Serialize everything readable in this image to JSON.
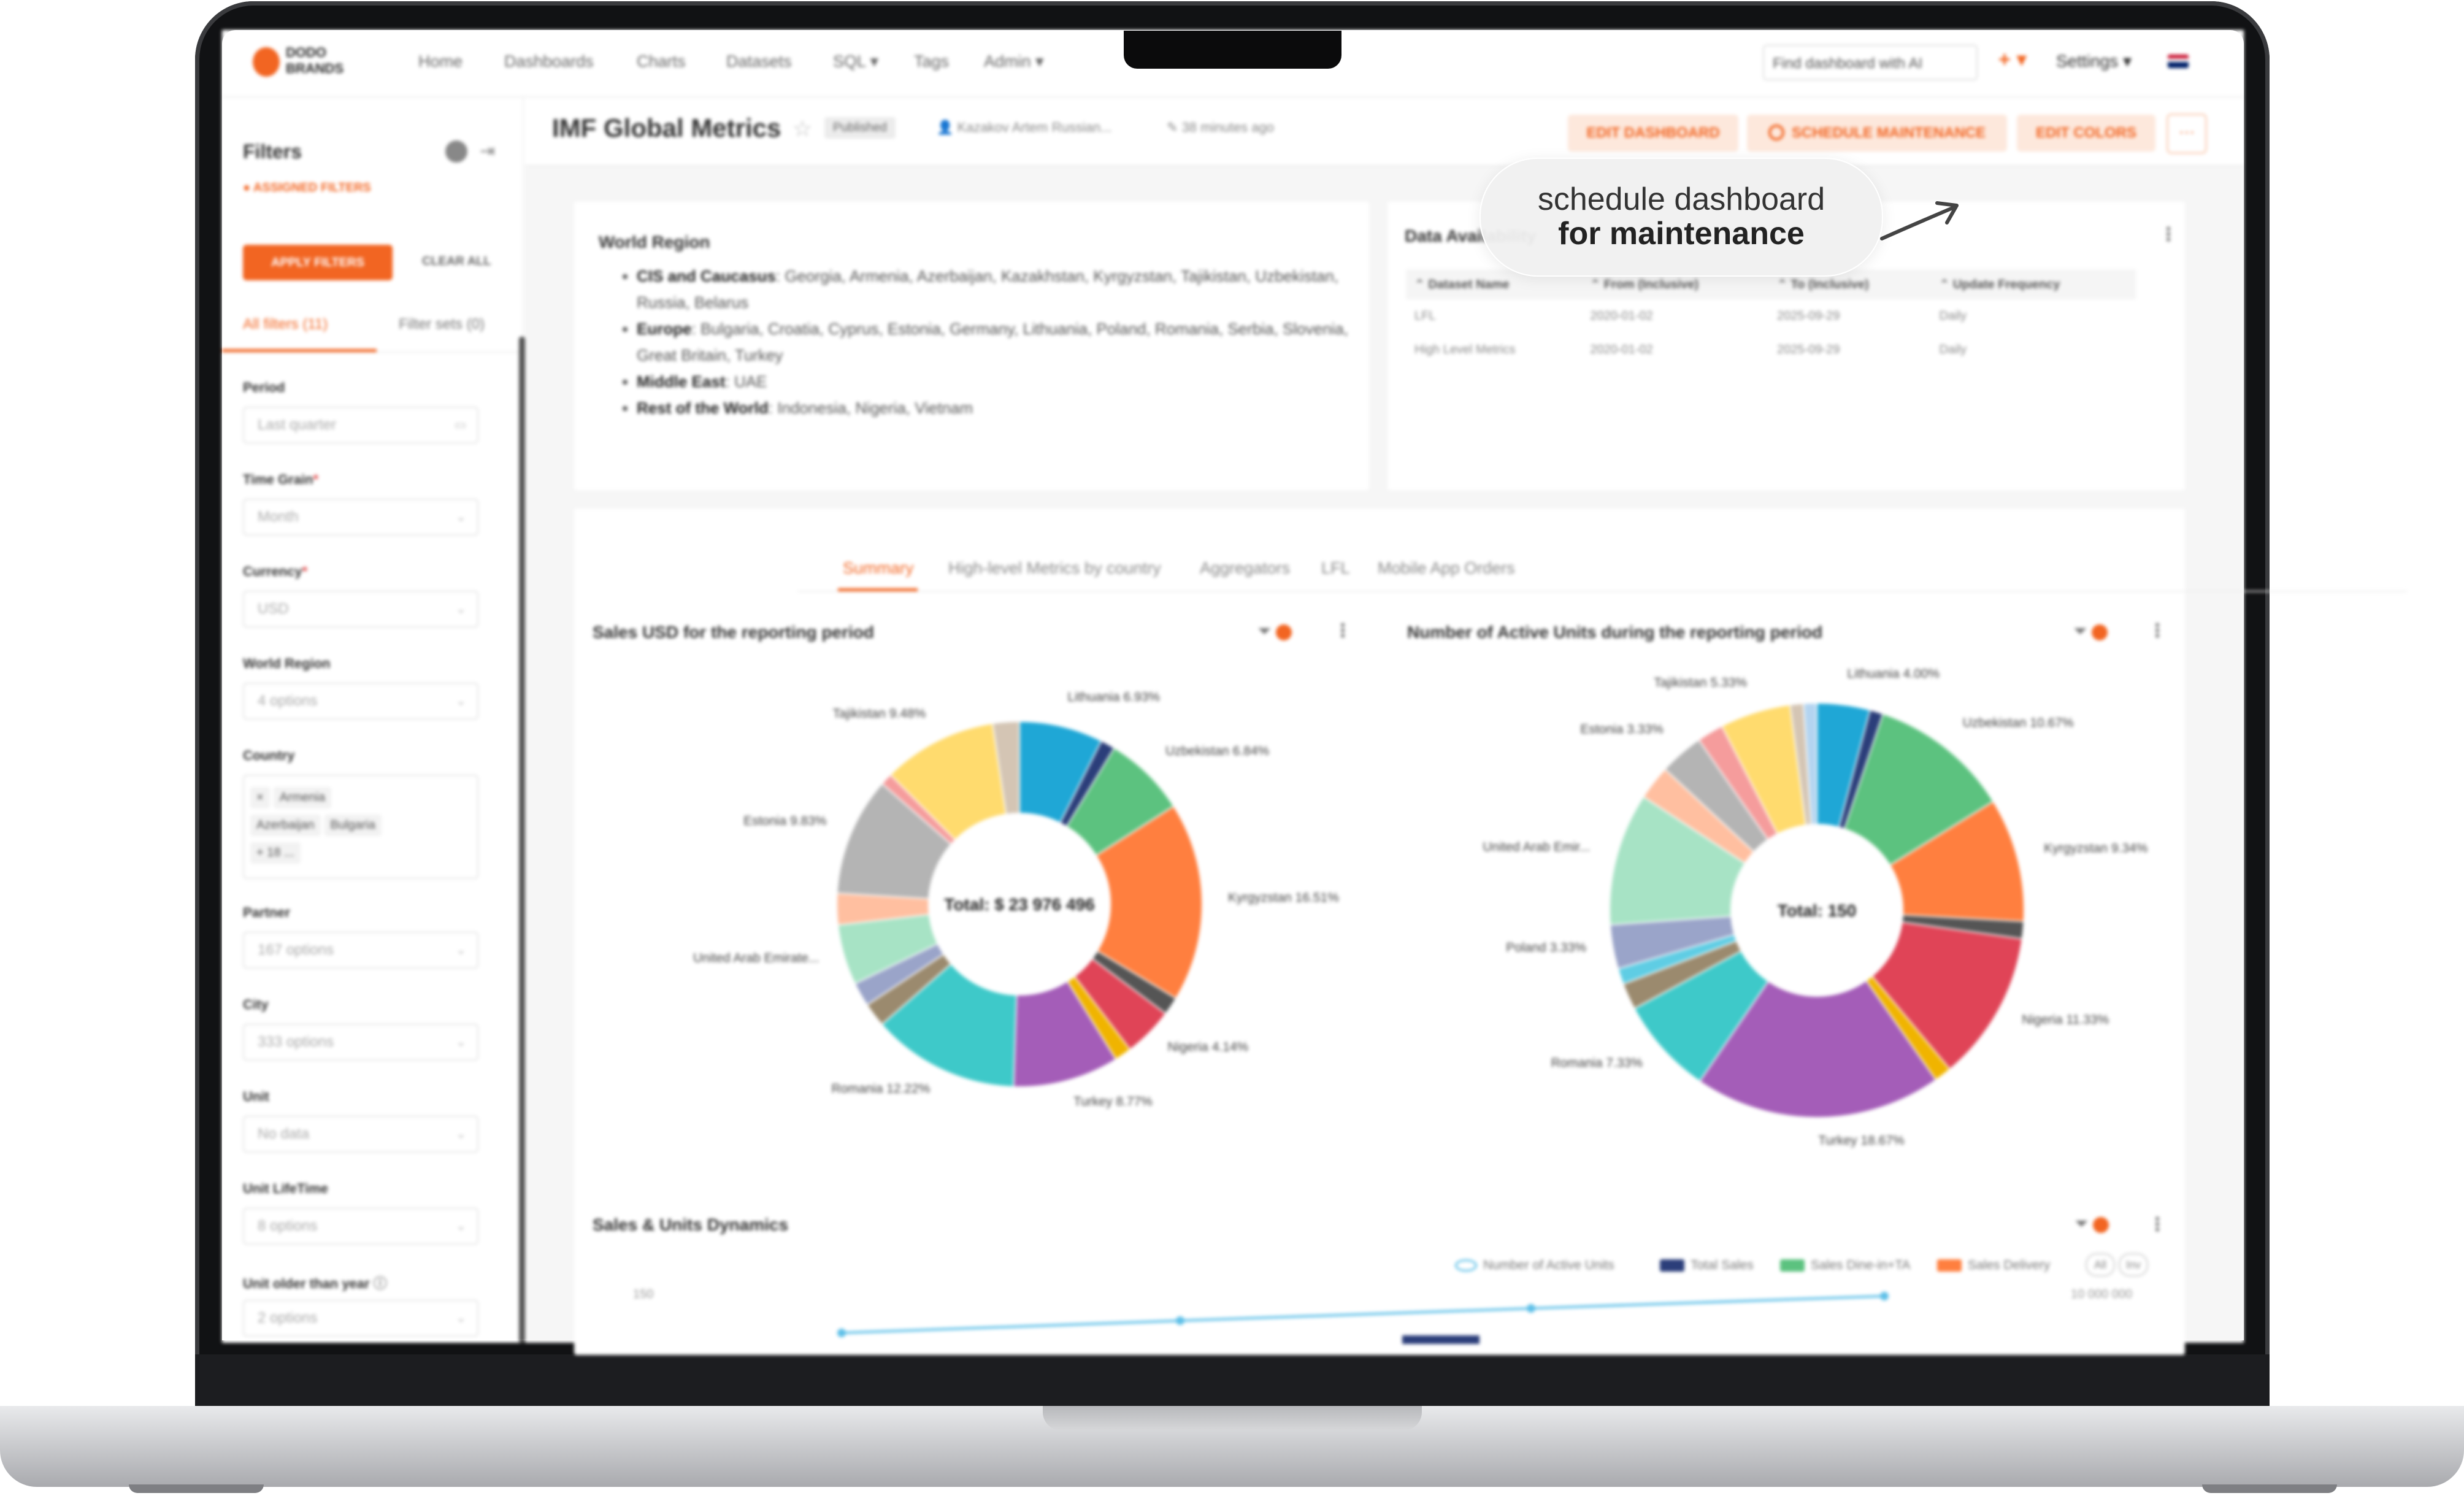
{
  "brand": {
    "logo_text": "DODO BRANDS"
  },
  "nav": {
    "items": [
      "Home",
      "Dashboards",
      "Charts",
      "Datasets",
      "SQL ▾",
      "Tags",
      "Admin ▾"
    ],
    "search_placeholder": "Find dashboard with AI",
    "plus": "+ ▾",
    "settings": "Settings ▾"
  },
  "sidebar": {
    "title": "Filters",
    "assigned": "ASSIGNED FILTERS",
    "apply": "APPLY FILTERS",
    "clear": "CLEAR ALL",
    "tabs": [
      "All filters (11)",
      "Filter sets (0)"
    ],
    "filters": [
      {
        "label": "Period",
        "required": false,
        "value": "Last quarter"
      },
      {
        "label": "Time Grain",
        "required": true,
        "value": "Month"
      },
      {
        "label": "Currency",
        "required": true,
        "value": "USD"
      },
      {
        "label": "World Region",
        "required": false,
        "value": "4 options"
      },
      {
        "label": "Country",
        "required": false,
        "tags": [
          "Armenia",
          "Azerbaijan",
          "Bulgaria",
          "+ 18 ..."
        ]
      },
      {
        "label": "Partner",
        "required": false,
        "value": "167 options"
      },
      {
        "label": "City",
        "required": false,
        "value": "333 options"
      },
      {
        "label": "Unit",
        "required": false,
        "value": "No data"
      },
      {
        "label": "Unit LifeTime",
        "required": false,
        "value": "8 options"
      },
      {
        "label": "Unit older than year",
        "required": false,
        "value": "2 options"
      }
    ]
  },
  "header": {
    "title": "IMF Global Metrics",
    "status": "Published",
    "owner": "Kazakov Artem Russian...",
    "modified": "38 minutes ago",
    "edit_dashboard": "EDIT DASHBOARD",
    "schedule": "SCHEDULE MAINTENANCE",
    "edit_colors": "EDIT COLORS",
    "more": "···"
  },
  "world_region": {
    "title": "World Region",
    "items": [
      {
        "name": "CIS and Caucasus",
        "countries": "Georgia, Armenia, Azerbaijan, Kazakhstan, Kyrgyzstan, Tajikistan, Uzbekistan, Russia, Belarus"
      },
      {
        "name": "Europe",
        "countries": "Bulgaria, Croatia, Cyprus, Estonia, Germany, Lithuania, Poland, Romania, Serbia, Slovenia, Great Britain, Turkey"
      },
      {
        "name": "Middle East",
        "countries": "UAE"
      },
      {
        "name": "Rest of the World",
        "countries": "Indonesia, Nigeria, Vietnam"
      }
    ]
  },
  "data_availability": {
    "title": "Data Availability",
    "columns": [
      "Dataset Name",
      "From (Inclusive)",
      "To (Inclusive)",
      "Update Frequency"
    ],
    "rows": [
      [
        "LFL",
        "2020-01-02",
        "2025-09-29",
        "Daily"
      ],
      [
        "High Level Metrics",
        "2020-01-02",
        "2025-09-29",
        "Daily"
      ]
    ]
  },
  "tabs": [
    "Summary",
    "High-level Metrics by country",
    "Aggregators",
    "LFL",
    "Mobile App Orders"
  ],
  "chart_data": [
    {
      "type": "pie",
      "title": "Sales USD for the reporting period",
      "center_label": "Total: $ 23 976 496",
      "slices": [
        {
          "label": "Lithuania 6.93%",
          "value": 6.93,
          "color": "#1fa7d6"
        },
        {
          "label": "",
          "value": 1.2,
          "color": "#2b3e7a"
        },
        {
          "label": "Uzbekistan 6.84%",
          "value": 6.84,
          "color": "#5cc27f"
        },
        {
          "label": "Kyrgyzstan 16.51%",
          "value": 16.51,
          "color": "#ff7f3f"
        },
        {
          "label": "",
          "value": 1.5,
          "color": "#555555"
        },
        {
          "label": "Nigeria 4.14%",
          "value": 4.14,
          "color": "#e04457"
        },
        {
          "label": "",
          "value": 1.4,
          "color": "#f0b400"
        },
        {
          "label": "Turkey 8.77%",
          "value": 8.77,
          "color": "#a45db8"
        },
        {
          "label": "Romania 12.22%",
          "value": 12.22,
          "color": "#3ec9c9"
        },
        {
          "label": "",
          "value": 2.0,
          "color": "#9b8a6e"
        },
        {
          "label": "",
          "value": 2.0,
          "color": "#9aa4c9"
        },
        {
          "label": "United Arab Emirate...",
          "value": 5.0,
          "color": "#a7e3c5"
        },
        {
          "label": "",
          "value": 2.6,
          "color": "#ffbfa0"
        },
        {
          "label": "Estonia 9.83%",
          "value": 9.83,
          "color": "#b4b4b4"
        },
        {
          "label": "",
          "value": 1.0,
          "color": "#f59c9c"
        },
        {
          "label": "Tajikistan 9.48%",
          "value": 9.48,
          "color": "#ffdb6e"
        },
        {
          "label": "",
          "value": 2.2,
          "color": "#d4c5b4"
        }
      ]
    },
    {
      "type": "pie",
      "title": "Number of Active Units during the reporting period",
      "center_label": "Total: 150",
      "slices": [
        {
          "label": "Lithuania 4.00%",
          "value": 4.0,
          "color": "#1fa7d6"
        },
        {
          "label": "",
          "value": 1.0,
          "color": "#2b3e7a"
        },
        {
          "label": "Uzbekistan 10.67%",
          "value": 10.67,
          "color": "#5cc27f"
        },
        {
          "label": "Kyrgyzstan 9.34%",
          "value": 9.34,
          "color": "#ff7f3f"
        },
        {
          "label": "",
          "value": 1.3,
          "color": "#555555"
        },
        {
          "label": "Nigeria 11.33%",
          "value": 11.33,
          "color": "#e04457"
        },
        {
          "label": "",
          "value": 1.3,
          "color": "#f0b400"
        },
        {
          "label": "Turkey 18.67%",
          "value": 18.67,
          "color": "#a45db8"
        },
        {
          "label": "Romania 7.33%",
          "value": 7.33,
          "color": "#3ec9c9"
        },
        {
          "label": "",
          "value": 2.0,
          "color": "#9b8a6e"
        },
        {
          "label": "",
          "value": 1.2,
          "color": "#5fcde4"
        },
        {
          "label": "Poland 3.33%",
          "value": 3.33,
          "color": "#9aa4c9"
        },
        {
          "label": "United Arab Emir...",
          "value": 10.0,
          "color": "#a7e3c5"
        },
        {
          "label": "",
          "value": 2.6,
          "color": "#ffbfa0"
        },
        {
          "label": "Estonia 3.33%",
          "value": 3.33,
          "color": "#b4b4b4"
        },
        {
          "label": "",
          "value": 2.0,
          "color": "#f59c9c"
        },
        {
          "label": "Tajikistan 5.33%",
          "value": 5.33,
          "color": "#ffdb6e"
        },
        {
          "label": "",
          "value": 1.0,
          "color": "#d4c5b4"
        },
        {
          "label": "",
          "value": 1.0,
          "color": "#b3d4f0"
        }
      ]
    },
    {
      "type": "line",
      "title": "Sales & Units Dynamics",
      "y_left_label": "150",
      "y_right_label": "10 000 000",
      "series": [
        {
          "name": "Number of Active Units",
          "color": "#5fc0e8"
        },
        {
          "name": "Total Sales",
          "color": "#2b3e7a"
        },
        {
          "name": "Sales Dine-in+TA",
          "color": "#5cc27f"
        },
        {
          "name": "Sales Delivery",
          "color": "#ff7f3f"
        }
      ],
      "toggles": [
        "All",
        "Inv"
      ]
    }
  ],
  "callout": {
    "line1": "schedule dashboard",
    "line2": "for maintenance"
  }
}
